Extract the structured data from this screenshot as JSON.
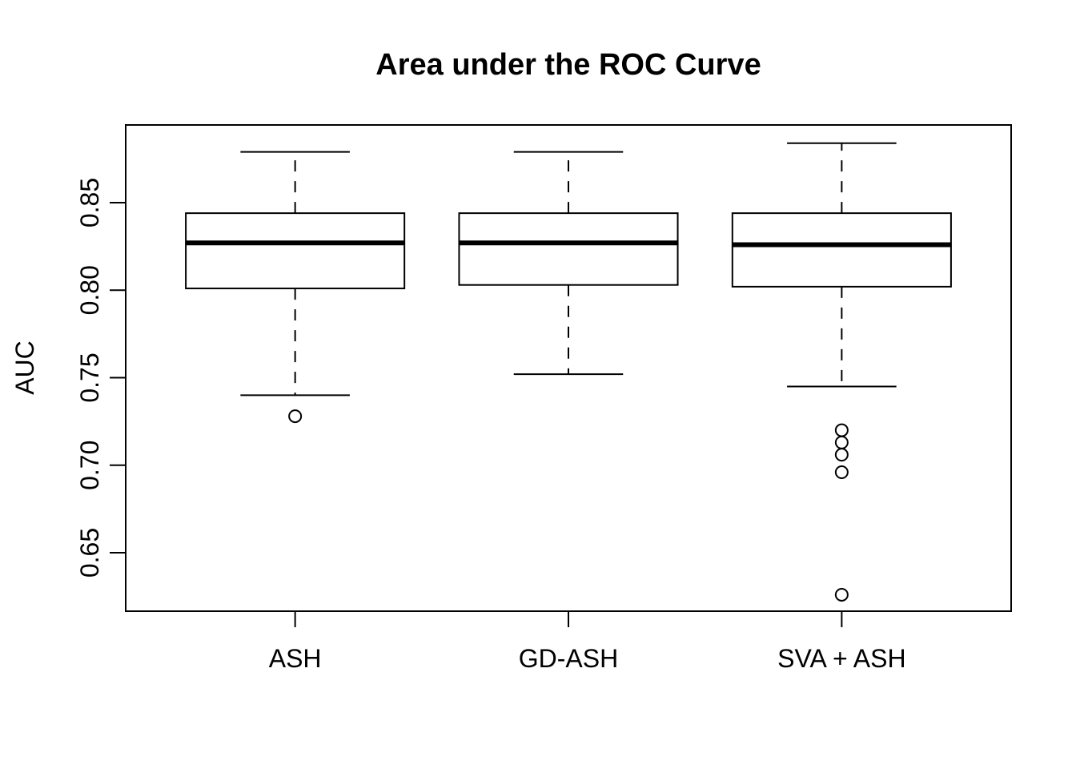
{
  "chart_data": {
    "type": "boxplot",
    "title": "Area under the ROC Curve",
    "xlabel": "",
    "ylabel": "AUC",
    "categories": [
      "ASH",
      "GD-ASH",
      "SVA + ASH"
    ],
    "y_ticks": [
      0.65,
      0.7,
      0.75,
      0.8,
      0.85
    ],
    "ylim": [
      0.6166,
      0.8944
    ],
    "grid": false,
    "legend": "none",
    "boxes": [
      {
        "category": "ASH",
        "whisker_low": 0.74,
        "q1": 0.801,
        "median": 0.827,
        "q3": 0.844,
        "whisker_high": 0.879,
        "outliers": [
          0.728
        ]
      },
      {
        "category": "GD-ASH",
        "whisker_low": 0.752,
        "q1": 0.803,
        "median": 0.827,
        "q3": 0.844,
        "whisker_high": 0.879,
        "outliers": []
      },
      {
        "category": "SVA + ASH",
        "whisker_low": 0.745,
        "q1": 0.802,
        "median": 0.826,
        "q3": 0.844,
        "whisker_high": 0.884,
        "outliers": [
          0.72,
          0.713,
          0.706,
          0.696,
          0.626
        ]
      }
    ],
    "colors": {
      "stroke": "#000000",
      "box_fill": "#ffffff",
      "background": "#ffffff"
    }
  }
}
